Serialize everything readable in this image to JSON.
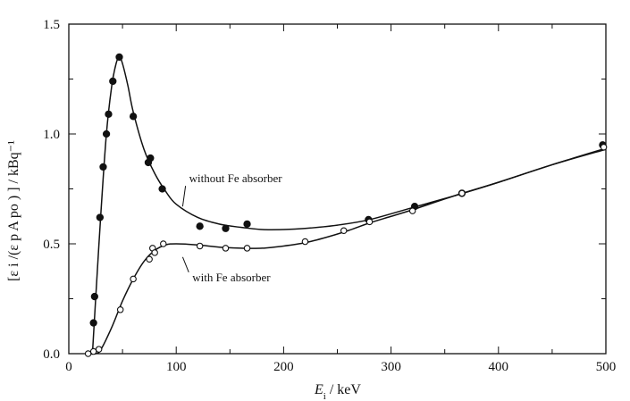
{
  "chart_data": {
    "type": "scatter",
    "xlim": [
      0,
      500
    ],
    "ylim": [
      0,
      1.5
    ],
    "x_ticks": [
      "0",
      "100",
      "200",
      "300",
      "400",
      "500"
    ],
    "y_ticks": [
      "0.0",
      "0.5",
      "1.0",
      "1.5"
    ],
    "xlabel_main": "E",
    "xlabel_sub": "i",
    "xlabel_rest": " / keV",
    "ylabel": "[ε i /(ε p A po ) ] / kBq⁻¹",
    "grid": false,
    "series": [
      {
        "marker": "filled-circle",
        "color": "#111111",
        "points": [
          [
            23,
            0.14
          ],
          [
            24,
            0.26
          ],
          [
            29,
            0.62
          ],
          [
            32,
            0.85
          ],
          [
            35,
            1.0
          ],
          [
            37,
            1.09
          ],
          [
            41,
            1.24
          ],
          [
            47,
            1.35
          ],
          [
            60,
            1.08
          ],
          [
            74,
            0.87
          ],
          [
            76,
            0.89
          ],
          [
            87,
            0.75
          ],
          [
            122,
            0.58
          ],
          [
            146,
            0.57
          ],
          [
            166,
            0.59
          ],
          [
            279,
            0.61
          ],
          [
            322,
            0.67
          ],
          [
            366,
            0.73
          ],
          [
            497,
            0.95
          ]
        ],
        "curve": [
          [
            22,
            0.0
          ],
          [
            25,
            0.25
          ],
          [
            30,
            0.65
          ],
          [
            35,
            1.0
          ],
          [
            40,
            1.22
          ],
          [
            44,
            1.32
          ],
          [
            47,
            1.35
          ],
          [
            50,
            1.32
          ],
          [
            55,
            1.22
          ],
          [
            60,
            1.1
          ],
          [
            70,
            0.93
          ],
          [
            80,
            0.82
          ],
          [
            90,
            0.74
          ],
          [
            100,
            0.68
          ],
          [
            120,
            0.62
          ],
          [
            140,
            0.59
          ],
          [
            160,
            0.575
          ],
          [
            180,
            0.565
          ],
          [
            200,
            0.565
          ],
          [
            220,
            0.57
          ],
          [
            250,
            0.585
          ],
          [
            280,
            0.61
          ],
          [
            320,
            0.665
          ],
          [
            360,
            0.72
          ],
          [
            400,
            0.78
          ],
          [
            450,
            0.86
          ],
          [
            500,
            0.93
          ]
        ]
      },
      {
        "marker": "open-circle",
        "color": "#111111",
        "points": [
          [
            18,
            0.0
          ],
          [
            23,
            0.01
          ],
          [
            28,
            0.02
          ],
          [
            48,
            0.2
          ],
          [
            60,
            0.34
          ],
          [
            75,
            0.43
          ],
          [
            78,
            0.48
          ],
          [
            80,
            0.46
          ],
          [
            88,
            0.5
          ],
          [
            122,
            0.49
          ],
          [
            146,
            0.48
          ],
          [
            166,
            0.48
          ],
          [
            220,
            0.51
          ],
          [
            256,
            0.56
          ],
          [
            280,
            0.6
          ],
          [
            320,
            0.65
          ],
          [
            366,
            0.73
          ],
          [
            498,
            0.94
          ]
        ],
        "curve": [
          [
            15,
            0.0
          ],
          [
            25,
            0.0
          ],
          [
            30,
            0.02
          ],
          [
            40,
            0.12
          ],
          [
            50,
            0.24
          ],
          [
            60,
            0.34
          ],
          [
            70,
            0.42
          ],
          [
            80,
            0.47
          ],
          [
            90,
            0.495
          ],
          [
            100,
            0.5
          ],
          [
            120,
            0.495
          ],
          [
            140,
            0.485
          ],
          [
            160,
            0.48
          ],
          [
            180,
            0.48
          ],
          [
            200,
            0.49
          ],
          [
            220,
            0.505
          ],
          [
            240,
            0.53
          ],
          [
            260,
            0.56
          ],
          [
            280,
            0.595
          ],
          [
            300,
            0.625
          ],
          [
            320,
            0.655
          ],
          [
            360,
            0.72
          ],
          [
            400,
            0.78
          ],
          [
            450,
            0.86
          ],
          [
            500,
            0.935
          ]
        ]
      }
    ],
    "annotations": [
      {
        "text": "without Fe absorber",
        "anchor": [
          112,
          0.78
        ],
        "pointer_to": [
          106,
          0.67
        ]
      },
      {
        "text": "with Fe absorber",
        "anchor": [
          115,
          0.33
        ],
        "pointer_to": [
          106,
          0.44
        ]
      }
    ]
  }
}
